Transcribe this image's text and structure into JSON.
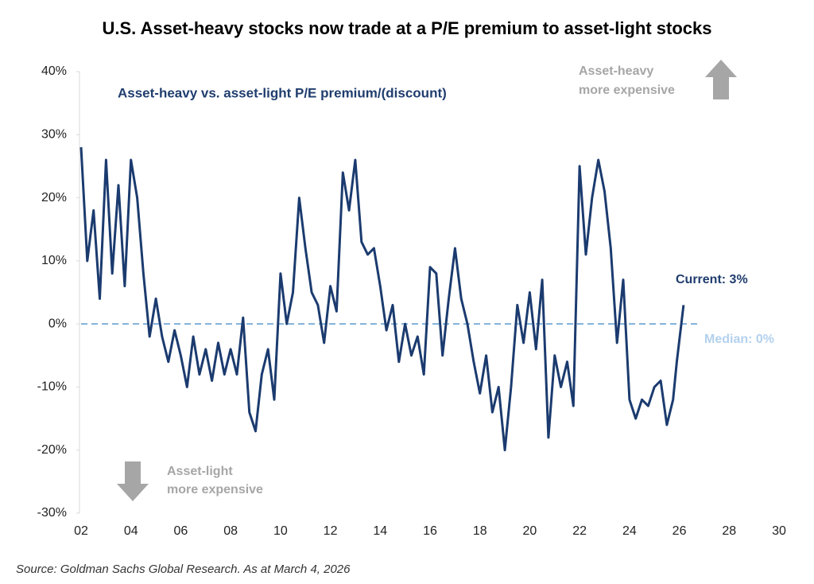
{
  "chart_data": {
    "type": "line",
    "title": "U.S. Asset-heavy stocks now trade at a P/E premium to asset-light stocks",
    "source": "Source: Goldman Sachs Global Research. As at March 4, 2026",
    "up_label": [
      "Asset-heavy",
      "more expensive"
    ],
    "down_label": [
      "Asset-light",
      "more expensive"
    ],
    "current_label": "Current: 3%",
    "median_label": "Median: 0%",
    "median": 0,
    "xlim": [
      2002,
      2030
    ],
    "xticks": [
      {
        "value": 2002,
        "label": "02"
      },
      {
        "value": 2004,
        "label": "04"
      },
      {
        "value": 2006,
        "label": "06"
      },
      {
        "value": 2008,
        "label": "08"
      },
      {
        "value": 2010,
        "label": "10"
      },
      {
        "value": 2012,
        "label": "12"
      },
      {
        "value": 2014,
        "label": "14"
      },
      {
        "value": 2016,
        "label": "16"
      },
      {
        "value": 2018,
        "label": "18"
      },
      {
        "value": 2020,
        "label": "20"
      },
      {
        "value": 2022,
        "label": "22"
      },
      {
        "value": 2024,
        "label": "24"
      },
      {
        "value": 2026,
        "label": "26"
      },
      {
        "value": 2028,
        "label": "28"
      },
      {
        "value": 2030,
        "label": "30"
      }
    ],
    "ylim": [
      -30,
      40
    ],
    "yticks": [
      {
        "value": 40,
        "label": "40%"
      },
      {
        "value": 30,
        "label": "30%"
      },
      {
        "value": 20,
        "label": "20%"
      },
      {
        "value": 10,
        "label": "10%"
      },
      {
        "value": 0,
        "label": "0%"
      },
      {
        "value": -10,
        "label": "-10%"
      },
      {
        "value": -20,
        "label": "-20%"
      },
      {
        "value": -30,
        "label": "-30%"
      }
    ],
    "x": [
      2002.0,
      2002.25,
      2002.5,
      2002.75,
      2003.0,
      2003.25,
      2003.5,
      2003.75,
      2004.0,
      2004.25,
      2004.5,
      2004.75,
      2005.0,
      2005.25,
      2005.5,
      2005.75,
      2006.0,
      2006.25,
      2006.5,
      2006.75,
      2007.0,
      2007.25,
      2007.5,
      2007.75,
      2008.0,
      2008.25,
      2008.5,
      2008.75,
      2009.0,
      2009.25,
      2009.5,
      2009.75,
      2010.0,
      2010.25,
      2010.5,
      2010.75,
      2011.0,
      2011.25,
      2011.5,
      2011.75,
      2012.0,
      2012.25,
      2012.5,
      2012.75,
      2013.0,
      2013.25,
      2013.5,
      2013.75,
      2014.0,
      2014.25,
      2014.5,
      2014.75,
      2015.0,
      2015.25,
      2015.5,
      2015.75,
      2016.0,
      2016.25,
      2016.5,
      2016.75,
      2017.0,
      2017.25,
      2017.5,
      2017.75,
      2018.0,
      2018.25,
      2018.5,
      2018.75,
      2019.0,
      2019.25,
      2019.5,
      2019.75,
      2020.0,
      2020.25,
      2020.5,
      2020.75,
      2021.0,
      2021.25,
      2021.5,
      2021.75,
      2022.0,
      2022.25,
      2022.5,
      2022.75,
      2023.0,
      2023.25,
      2023.5,
      2023.75,
      2024.0,
      2024.25,
      2024.5,
      2024.75,
      2025.0,
      2025.25,
      2025.5,
      2025.75,
      2025.9,
      2026.17
    ],
    "series": [
      {
        "name": "Asset-heavy vs. asset-light P/E premium/(discount)",
        "color": "#1b3b6f",
        "values": [
          28,
          10,
          18,
          4,
          26,
          8,
          22,
          6,
          26,
          20,
          8,
          -2,
          4,
          -2,
          -6,
          -1,
          -5,
          -10,
          -2,
          -8,
          -4,
          -9,
          -3,
          -8,
          -4,
          -8,
          1,
          -14,
          -17,
          -8,
          -4,
          -12,
          8,
          0,
          5,
          20,
          12,
          5,
          3,
          -3,
          6,
          2,
          24,
          18,
          26,
          13,
          11,
          12,
          6,
          -1,
          3,
          -6,
          0,
          -5,
          -2,
          -8,
          9,
          8,
          -5,
          4,
          12,
          4,
          0,
          -6,
          -11,
          -5,
          -14,
          -10,
          -20,
          -10,
          3,
          -3,
          5,
          -4,
          7,
          -18,
          -5,
          -10,
          -6,
          -13,
          25,
          11,
          20,
          26,
          21,
          12,
          -3,
          7,
          -12,
          -15,
          -12,
          -13,
          -10,
          -9,
          -16,
          -12,
          -6,
          3
        ]
      }
    ]
  }
}
